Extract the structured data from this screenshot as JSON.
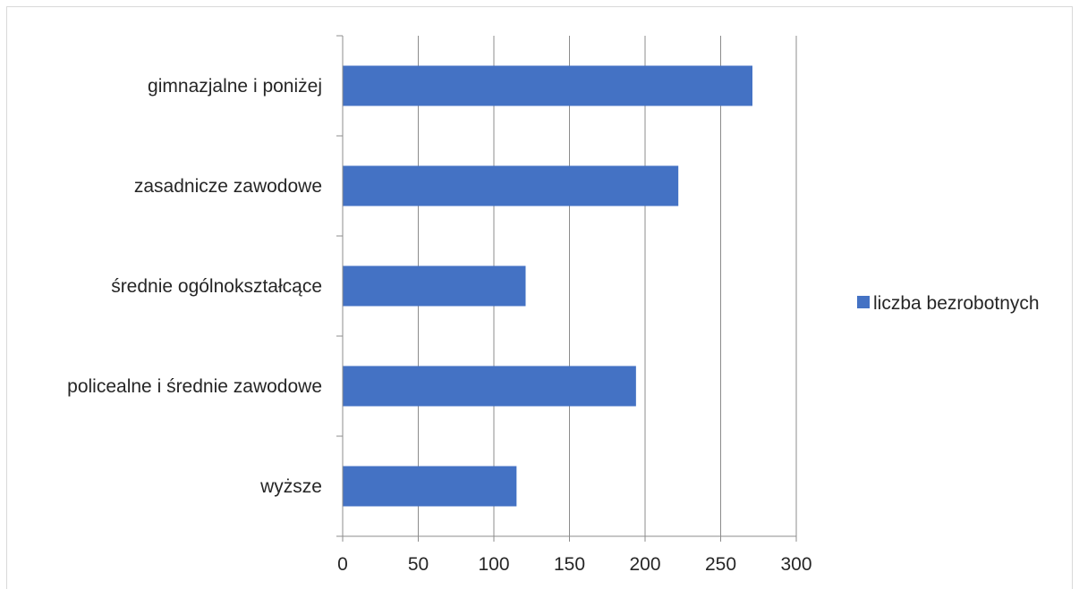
{
  "chart_data": {
    "type": "bar",
    "orientation": "horizontal",
    "categories": [
      "gimnazjalne i poniżej",
      "zasadnicze zawodowe",
      "średnie ogólnokształcące",
      "policealne i średnie zawodowe",
      "wyższe"
    ],
    "series": [
      {
        "name": "liczba bezrobotnych",
        "values": [
          271,
          222,
          121,
          194,
          115
        ],
        "color": "#4472c4"
      }
    ],
    "xlim": [
      0,
      300
    ],
    "xticks": [
      "0",
      "50",
      "100",
      "150",
      "200",
      "250",
      "300"
    ],
    "title": "",
    "xlabel": "",
    "ylabel": "",
    "grid": "vertical",
    "legend_position": "right"
  }
}
